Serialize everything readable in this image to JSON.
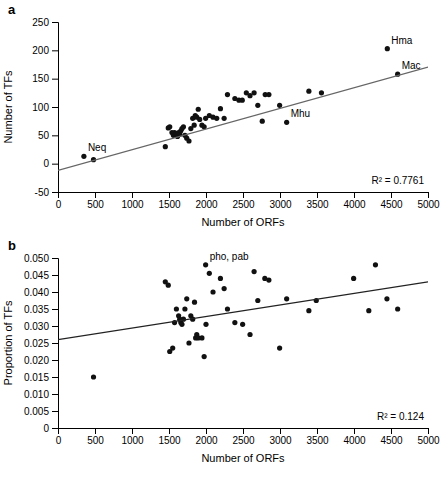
{
  "chart_data": [
    {
      "type": "scatter",
      "title": "a",
      "xlabel": "Number of ORFs",
      "ylabel": "Number of TFs",
      "xlim": [
        0,
        5000
      ],
      "ylim": [
        -50,
        250
      ],
      "xticks": [
        0,
        500,
        1000,
        1500,
        2000,
        2500,
        3000,
        3500,
        4000,
        4500,
        5000
      ],
      "yticks": [
        -50,
        0,
        50,
        100,
        150,
        200,
        250
      ],
      "series": [
        {
          "type": "scatter",
          "color": "#111111",
          "x": [
            350,
            480,
            1450,
            1490,
            1510,
            1540,
            1560,
            1575,
            1590,
            1600,
            1615,
            1630,
            1645,
            1660,
            1675,
            1695,
            1715,
            1740,
            1770,
            1795,
            1820,
            1840,
            1855,
            1875,
            1895,
            1915,
            1945,
            1975,
            1995,
            2045,
            2095,
            2145,
            2195,
            2245,
            2290,
            2390,
            2445,
            2490,
            2545,
            2595,
            2650,
            2700,
            2760,
            2800,
            2850,
            2995,
            3090,
            3390,
            3560,
            4450,
            4590
          ],
          "values": [
            13,
            7,
            30,
            63,
            65,
            55,
            50,
            55,
            52,
            50,
            48,
            55,
            52,
            58,
            62,
            65,
            50,
            45,
            40,
            62,
            80,
            68,
            85,
            82,
            96,
            78,
            68,
            65,
            80,
            85,
            82,
            80,
            97,
            80,
            122,
            115,
            112,
            112,
            125,
            120,
            125,
            103,
            75,
            122,
            122,
            103,
            73,
            128,
            125,
            203,
            158
          ]
        },
        {
          "type": "line",
          "color": "#666666",
          "x": [
            0,
            5000
          ],
          "values": [
            -12,
            170.5
          ]
        }
      ],
      "annotations": [
        {
          "text": "R² = 0.7761"
        },
        {
          "text": "Neq",
          "x": 350,
          "y": 13
        },
        {
          "text": "Hma",
          "x": 4450,
          "y": 203
        },
        {
          "text": "Mac",
          "x": 4590,
          "y": 158
        },
        {
          "text": "Mhu",
          "x": 3090,
          "y": 73
        }
      ]
    },
    {
      "type": "scatter",
      "title": "b",
      "xlabel": "Number of ORFs",
      "ylabel": "Proportion of TFs",
      "xlim": [
        0,
        5000
      ],
      "ylim": [
        0,
        0.05
      ],
      "xticks": [
        0,
        500,
        1000,
        1500,
        2000,
        2500,
        3000,
        3500,
        4000,
        4500,
        5000
      ],
      "yticks": [
        0,
        0.005,
        {
          "value": 0.01,
          "label": "0.010"
        },
        0.015,
        {
          "value": 0.02,
          "label": "0.020"
        },
        0.025,
        {
          "value": 0.03,
          "label": "0.030"
        },
        0.035,
        {
          "value": 0.04,
          "label": "0.040"
        },
        0.045,
        {
          "value": 0.05,
          "label": "0.050"
        }
      ],
      "series": [
        {
          "type": "scatter",
          "color": "#111111",
          "x": [
            480,
            1450,
            1490,
            1510,
            1550,
            1575,
            1600,
            1630,
            1645,
            1660,
            1675,
            1695,
            1715,
            1740,
            1770,
            1795,
            1820,
            1845,
            1860,
            1875,
            1895,
            1945,
            1975,
            1995,
            2000,
            2045,
            2095,
            2195,
            2245,
            2290,
            2390,
            2495,
            2595,
            2650,
            2700,
            2795,
            2850,
            2995,
            3090,
            3390,
            3490,
            3995,
            4200,
            4290,
            4445,
            4590
          ],
          "values": [
            0.015,
            0.043,
            0.042,
            0.0225,
            0.0235,
            0.031,
            0.035,
            0.033,
            0.032,
            0.031,
            0.0305,
            0.032,
            0.035,
            0.038,
            0.025,
            0.033,
            0.032,
            0.037,
            0.0265,
            0.0275,
            0.0265,
            0.0265,
            0.021,
            0.048,
            0.0305,
            0.0455,
            0.04,
            0.044,
            0.041,
            0.035,
            0.031,
            0.0305,
            0.0275,
            0.046,
            0.0375,
            0.044,
            0.0435,
            0.0235,
            0.038,
            0.0345,
            0.0375,
            0.044,
            0.0345,
            0.048,
            0.038,
            0.035
          ]
        },
        {
          "type": "line",
          "color": "#222222",
          "x": [
            0,
            5000
          ],
          "values": [
            0.026,
            0.043
          ]
        }
      ],
      "annotations": [
        {
          "text": "R² = 0.124"
        },
        {
          "text": "pho, pab",
          "x": 1995,
          "y": 0.048
        }
      ]
    }
  ]
}
